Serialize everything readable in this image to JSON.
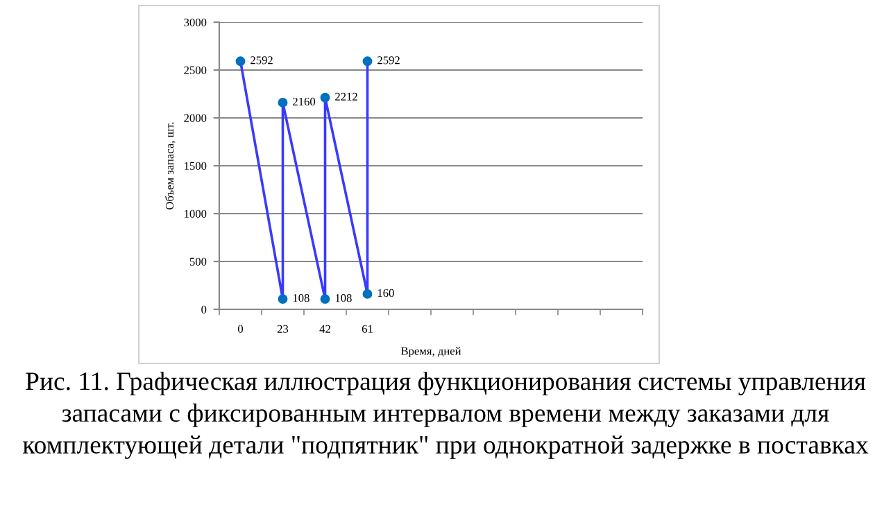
{
  "chart_data": {
    "type": "line",
    "categories": [
      "0",
      "23",
      "42",
      "61",
      null,
      null,
      null,
      null,
      null,
      null
    ],
    "series": [
      {
        "color": "#3a3aff",
        "x": [
          "0",
          "23",
          "23",
          "42",
          "42",
          "61",
          "61"
        ],
        "values": [
          2592,
          108,
          2160,
          108,
          2212,
          160,
          2592
        ]
      }
    ],
    "ylim": [
      0,
      3000
    ],
    "yticks": [
      0,
      500,
      1000,
      1500,
      2000,
      2500,
      3000
    ],
    "xlabel": "Время, дней",
    "ylabel": "Объем запаса, шт.",
    "data_labels": true,
    "marker": "circle",
    "grid": "y",
    "legend": false,
    "annotations": [
      "Рис. 11. Графическая иллюстрация функционирования системы управления запасами с фиксированным интервалом времени между заказами для комплектующей детали \"подпятник\" при однократной задержке в поставках"
    ]
  }
}
